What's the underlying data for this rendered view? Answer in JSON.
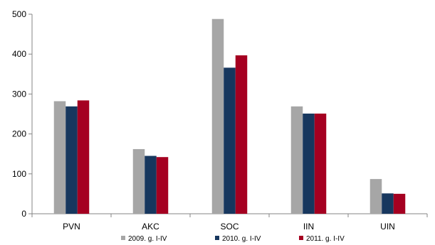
{
  "chart_data": {
    "type": "bar",
    "categories": [
      "PVN",
      "AKC",
      "SOC",
      "IIN",
      "UIN"
    ],
    "series": [
      {
        "name": "2009. g. I-IV",
        "color": "#a6a6a6",
        "values": [
          282,
          162,
          488,
          269,
          87
        ]
      },
      {
        "name": "2010. g. I-IV",
        "color": "#17375e",
        "values": [
          269,
          145,
          366,
          251,
          51
        ]
      },
      {
        "name": "2011. g. I-IV",
        "color": "#a50021",
        "values": [
          284,
          142,
          397,
          251,
          50
        ]
      }
    ],
    "ylim": [
      0,
      500
    ],
    "yticks": [
      "0",
      "100",
      "200",
      "300",
      "400",
      "500"
    ],
    "title": "",
    "xlabel": "",
    "ylabel": "",
    "grid": false,
    "legend_position": "bottom"
  }
}
